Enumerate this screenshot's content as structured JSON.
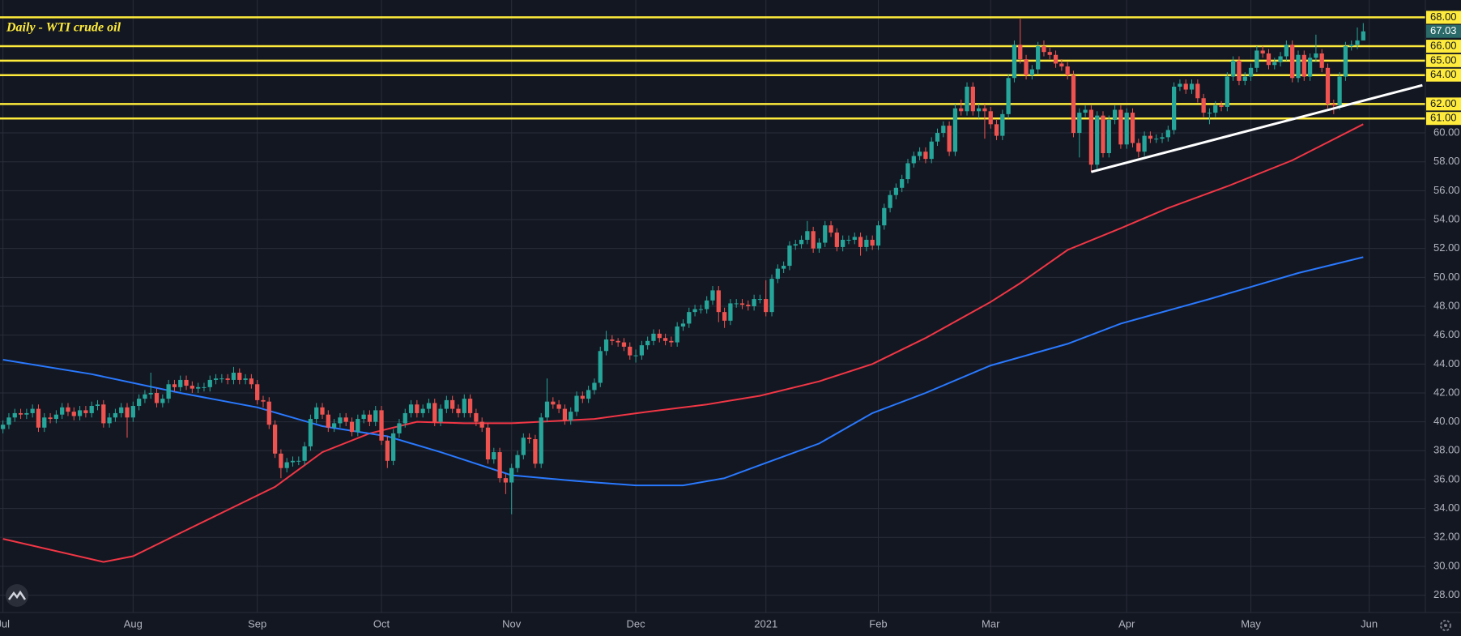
{
  "chart_data": {
    "type": "candlestick",
    "title": "Daily - WTI crude oil",
    "categories": [
      "Jul",
      null,
      null,
      null,
      null,
      null,
      null,
      null,
      null,
      null,
      null,
      null,
      null,
      null,
      null,
      null,
      null,
      null,
      null,
      null,
      null,
      null,
      "Aug",
      null,
      null,
      null,
      null,
      null,
      null,
      null,
      null,
      null,
      null,
      null,
      null,
      null,
      null,
      null,
      null,
      null,
      null,
      null,
      null,
      "Sep",
      null,
      null,
      null,
      null,
      null,
      null,
      null,
      null,
      null,
      null,
      null,
      null,
      null,
      null,
      null,
      null,
      null,
      null,
      null,
      null,
      "Oct",
      null,
      null,
      null,
      null,
      null,
      null,
      null,
      null,
      null,
      null,
      null,
      null,
      null,
      null,
      null,
      null,
      null,
      null,
      null,
      null,
      null,
      "Nov",
      null,
      null,
      null,
      null,
      null,
      null,
      null,
      null,
      null,
      null,
      null,
      null,
      null,
      null,
      null,
      null,
      null,
      null,
      null,
      null,
      "Dec",
      null,
      null,
      null,
      null,
      null,
      null,
      null,
      null,
      null,
      null,
      null,
      null,
      null,
      null,
      null,
      null,
      null,
      null,
      null,
      null,
      null,
      "2021",
      null,
      null,
      null,
      null,
      null,
      null,
      null,
      null,
      null,
      null,
      null,
      null,
      null,
      null,
      null,
      null,
      null,
      null,
      "Feb",
      null,
      null,
      null,
      null,
      null,
      null,
      null,
      null,
      null,
      null,
      null,
      null,
      null,
      null,
      null,
      null,
      null,
      null,
      "Mar",
      null,
      null,
      null,
      null,
      null,
      null,
      null,
      null,
      null,
      null,
      null,
      null,
      null,
      null,
      null,
      null,
      null,
      null,
      null,
      null,
      null,
      null,
      "Apr",
      null,
      null,
      null,
      null,
      null,
      null,
      null,
      null,
      null,
      null,
      null,
      null,
      null,
      null,
      null,
      null,
      null,
      null,
      null,
      null,
      "May",
      null,
      null,
      null,
      null,
      null,
      null,
      null,
      null,
      null,
      null,
      null,
      null,
      null,
      null,
      null,
      null,
      null,
      null,
      null,
      "Jun",
      null,
      null,
      null,
      null,
      null,
      null,
      null,
      null,
      null
    ],
    "open": [
      39.5,
      39.8,
      40.3,
      40.6,
      40.5,
      40.6,
      40.9,
      39.6,
      40.3,
      40.2,
      40.5,
      41.0,
      40.7,
      40.4,
      40.8,
      40.6,
      41.1,
      41.2,
      39.9,
      40.3,
      40.6,
      41.0,
      40.3,
      41.1,
      41.6,
      41.9,
      42.0,
      41.3,
      41.6,
      42.6,
      42.4,
      42.9,
      42.5,
      42.3,
      42.4,
      42.4,
      42.9,
      43.0,
      43.0,
      42.9,
      43.4,
      42.9,
      43.0,
      42.6,
      41.5,
      41.4,
      39.8,
      37.8,
      36.8,
      37.2,
      37.3,
      37.3,
      38.3,
      40.2,
      41.0,
      40.5,
      39.6,
      39.9,
      40.3,
      40.0,
      39.3,
      40.2,
      40.5,
      40.0,
      40.8,
      38.7,
      37.3,
      39.2,
      39.9,
      40.6,
      41.2,
      40.6,
      40.9,
      41.3,
      40.0,
      40.9,
      41.5,
      40.9,
      40.6,
      41.6,
      40.6,
      40.0,
      39.6,
      37.4,
      37.9,
      36.1,
      35.8,
      36.8,
      37.7,
      38.9,
      38.8,
      37.1,
      40.3,
      41.4,
      41.2,
      40.9,
      40.1,
      40.7,
      41.8,
      41.6,
      42.2,
      42.7,
      44.9,
      45.7,
      45.6,
      45.5,
      45.2,
      44.6,
      44.6,
      45.3,
      45.6,
      46.1,
      45.8,
      45.6,
      45.5,
      46.6,
      46.8,
      47.6,
      47.8,
      47.8,
      48.4,
      49.1,
      47.6,
      47.0,
      48.2,
      48.2,
      48.1,
      48.0,
      48.5,
      48.5,
      47.6,
      49.9,
      50.6,
      50.8,
      52.2,
      52.3,
      52.6,
      53.2,
      52.0,
      52.4,
      53.6,
      53.1,
      52.1,
      52.6,
      52.6,
      52.8,
      52.1,
      52.6,
      52.2,
      53.6,
      54.8,
      55.7,
      56.2,
      56.8,
      57.9,
      58.4,
      58.7,
      58.2,
      59.4,
      60.0,
      60.5,
      58.7,
      61.7,
      61.5,
      63.2,
      61.5,
      61.7,
      61.5,
      60.6,
      59.8,
      61.3,
      63.8,
      66.1,
      65.1,
      64.0,
      64.4,
      66.0,
      65.6,
      65.4,
      64.8,
      64.6,
      64.0,
      60.0,
      61.4,
      61.6,
      57.8,
      61.2,
      58.6,
      60.9,
      61.6,
      59.2,
      61.4,
      59.3,
      58.7,
      59.8,
      59.6,
      59.6,
      59.7,
      60.2,
      63.2,
      63.4,
      63.0,
      63.4,
      62.4,
      61.4,
      61.4,
      61.9,
      61.8,
      63.9,
      65.0,
      63.6,
      63.9,
      64.5,
      65.7,
      65.5,
      64.7,
      64.9,
      65.3,
      66.1,
      63.8,
      65.4,
      63.9,
      65.2,
      65.5,
      64.5,
      62.0,
      61.9,
      63.9,
      66.0,
      66.1,
      66.4,
      null,
      null,
      null,
      null,
      null,
      null,
      null,
      null,
      null,
      null
    ],
    "high": [
      40.1,
      40.6,
      40.9,
      40.9,
      40.9,
      41.2,
      41.2,
      40.6,
      40.6,
      40.8,
      41.3,
      41.3,
      41.0,
      41.1,
      41.1,
      41.4,
      41.5,
      41.5,
      40.6,
      40.9,
      41.3,
      41.3,
      41.4,
      41.9,
      42.2,
      43.4,
      42.3,
      41.9,
      42.9,
      42.9,
      43.2,
      43.2,
      42.8,
      42.7,
      42.7,
      43.2,
      43.3,
      43.3,
      43.3,
      43.8,
      43.7,
      43.3,
      43.3,
      42.9,
      41.8,
      41.7,
      40.1,
      38.1,
      37.5,
      37.6,
      37.6,
      38.6,
      40.5,
      41.3,
      41.3,
      40.8,
      40.2,
      40.6,
      40.6,
      40.3,
      40.5,
      40.8,
      40.8,
      41.1,
      41.1,
      39.0,
      39.5,
      40.2,
      40.9,
      41.5,
      41.5,
      41.2,
      41.6,
      41.6,
      41.2,
      41.8,
      41.8,
      41.2,
      41.9,
      41.9,
      40.9,
      40.3,
      39.9,
      38.2,
      38.2,
      36.4,
      37.1,
      38.0,
      39.2,
      39.2,
      39.1,
      40.6,
      43.0,
      41.7,
      41.5,
      41.2,
      41.0,
      42.1,
      42.1,
      42.5,
      43.0,
      45.2,
      46.3,
      46.0,
      45.8,
      45.8,
      45.5,
      45.0,
      45.6,
      45.9,
      46.4,
      46.4,
      46.1,
      45.9,
      46.9,
      47.1,
      47.9,
      48.1,
      48.1,
      48.7,
      49.4,
      49.4,
      47.9,
      48.5,
      48.5,
      48.5,
      48.4,
      48.8,
      48.8,
      49.8,
      50.2,
      50.9,
      51.1,
      52.5,
      52.6,
      52.9,
      53.9,
      53.5,
      52.7,
      53.9,
      53.9,
      53.4,
      52.9,
      52.9,
      53.1,
      53.1,
      52.9,
      52.9,
      53.9,
      55.1,
      56.0,
      56.5,
      57.1,
      58.2,
      58.7,
      59.0,
      59.0,
      59.7,
      60.3,
      60.8,
      60.8,
      62.0,
      62.3,
      63.5,
      63.5,
      62.0,
      62.0,
      61.8,
      60.9,
      61.6,
      64.1,
      66.4,
      67.9,
      65.4,
      64.7,
      66.3,
      66.4,
      65.9,
      65.7,
      65.1,
      64.9,
      64.3,
      61.7,
      61.9,
      61.9,
      61.5,
      61.5,
      61.2,
      61.9,
      61.9,
      61.7,
      61.7,
      59.6,
      60.1,
      60.1,
      59.9,
      60.0,
      60.5,
      63.5,
      63.7,
      63.7,
      63.7,
      63.7,
      62.7,
      61.7,
      62.2,
      62.2,
      64.2,
      65.3,
      65.3,
      64.2,
      64.8,
      66.0,
      66.0,
      65.8,
      65.2,
      65.6,
      66.4,
      66.4,
      65.7,
      65.7,
      65.5,
      66.8,
      65.8,
      64.8,
      62.3,
      64.2,
      66.3,
      66.4,
      67.3,
      67.6,
      null,
      null,
      null,
      null,
      null,
      null,
      null,
      null,
      null,
      null
    ],
    "low": [
      39.2,
      39.5,
      40.0,
      40.2,
      40.2,
      40.3,
      39.3,
      39.3,
      39.9,
      39.9,
      40.2,
      40.4,
      40.1,
      40.1,
      40.3,
      40.3,
      40.8,
      39.6,
      39.6,
      40.0,
      40.3,
      38.9,
      40.0,
      40.8,
      41.3,
      41.6,
      41.0,
      41.0,
      41.3,
      42.1,
      42.1,
      42.2,
      42.0,
      42.0,
      42.1,
      42.1,
      42.6,
      42.7,
      42.6,
      42.6,
      42.6,
      42.6,
      42.3,
      41.2,
      41.0,
      39.5,
      37.5,
      36.1,
      36.5,
      36.9,
      37.0,
      37.0,
      38.0,
      39.9,
      40.2,
      39.3,
      39.3,
      39.6,
      39.7,
      39.0,
      39.0,
      39.9,
      39.7,
      39.7,
      38.4,
      36.8,
      37.0,
      38.9,
      39.6,
      40.3,
      40.3,
      40.3,
      40.6,
      39.7,
      39.7,
      40.6,
      40.6,
      40.3,
      40.3,
      40.3,
      39.7,
      39.3,
      37.1,
      37.1,
      35.8,
      35.0,
      33.6,
      36.5,
      37.4,
      38.5,
      36.8,
      36.8,
      40.0,
      40.9,
      40.6,
      39.8,
      39.8,
      40.4,
      41.3,
      41.3,
      41.9,
      42.4,
      44.6,
      45.3,
      45.2,
      44.9,
      44.3,
      44.1,
      44.3,
      45.0,
      45.3,
      45.5,
      45.3,
      45.2,
      45.2,
      46.3,
      46.5,
      47.3,
      47.5,
      47.5,
      48.1,
      46.9,
      46.5,
      46.7,
      47.9,
      47.8,
      47.7,
      47.7,
      48.2,
      47.3,
      47.3,
      49.6,
      50.3,
      50.5,
      51.9,
      52.0,
      52.3,
      51.7,
      51.7,
      52.1,
      52.8,
      51.8,
      51.8,
      52.3,
      52.3,
      51.5,
      51.8,
      51.9,
      51.9,
      53.3,
      54.5,
      55.4,
      55.9,
      56.5,
      57.6,
      58.1,
      57.9,
      57.9,
      59.1,
      59.7,
      58.4,
      58.4,
      61.2,
      61.2,
      61.2,
      61.0,
      59.6,
      60.3,
      59.5,
      59.5,
      61.0,
      63.5,
      64.8,
      63.7,
      63.7,
      64.1,
      65.3,
      65.1,
      64.5,
      64.3,
      63.7,
      59.7,
      58.3,
      61.1,
      57.3,
      57.5,
      58.3,
      58.3,
      60.6,
      58.9,
      58.9,
      59.0,
      58.3,
      58.4,
      59.3,
      59.3,
      59.3,
      59.4,
      59.9,
      62.9,
      62.7,
      62.7,
      62.1,
      61.1,
      60.6,
      61.1,
      61.5,
      61.5,
      63.6,
      63.3,
      63.3,
      63.6,
      64.2,
      65.2,
      64.4,
      64.4,
      64.6,
      65.0,
      63.5,
      63.5,
      63.6,
      63.6,
      64.9,
      64.2,
      61.7,
      61.3,
      61.6,
      63.6,
      65.7,
      65.8,
      66.6,
      null,
      null,
      null,
      null,
      null,
      null,
      null,
      null,
      null,
      null
    ],
    "close": [
      39.8,
      40.3,
      40.6,
      40.5,
      40.6,
      40.9,
      39.6,
      40.3,
      40.2,
      40.5,
      41.0,
      40.7,
      40.4,
      40.8,
      40.6,
      41.1,
      41.2,
      39.9,
      40.3,
      40.6,
      41.0,
      40.3,
      41.1,
      41.6,
      41.9,
      42.0,
      41.3,
      41.6,
      42.6,
      42.4,
      42.9,
      42.5,
      42.3,
      42.4,
      42.4,
      42.9,
      43.0,
      43.0,
      42.9,
      43.4,
      42.9,
      43.0,
      42.6,
      41.5,
      41.4,
      39.8,
      37.8,
      36.8,
      37.2,
      37.3,
      37.3,
      38.3,
      40.2,
      41.0,
      40.5,
      39.6,
      39.9,
      40.3,
      40.0,
      39.3,
      40.2,
      40.5,
      40.0,
      40.8,
      38.7,
      37.3,
      39.2,
      39.9,
      40.6,
      41.2,
      40.6,
      40.9,
      41.3,
      40.0,
      40.9,
      41.5,
      40.9,
      40.6,
      41.6,
      40.6,
      40.0,
      39.6,
      37.4,
      37.9,
      36.1,
      35.8,
      36.8,
      37.7,
      38.9,
      38.8,
      37.1,
      40.3,
      41.4,
      41.2,
      40.9,
      40.1,
      40.7,
      41.8,
      41.6,
      42.2,
      42.7,
      44.9,
      45.7,
      45.6,
      45.5,
      45.2,
      44.6,
      44.6,
      45.3,
      45.6,
      46.1,
      45.8,
      45.6,
      45.5,
      46.6,
      46.8,
      47.6,
      47.8,
      47.8,
      48.4,
      49.1,
      47.6,
      47.0,
      48.2,
      48.2,
      48.1,
      48.0,
      48.5,
      48.5,
      47.6,
      49.9,
      50.6,
      50.8,
      52.2,
      52.3,
      52.6,
      53.2,
      52.0,
      52.4,
      53.6,
      53.1,
      52.1,
      52.6,
      52.6,
      52.8,
      52.1,
      52.6,
      52.2,
      53.6,
      54.8,
      55.7,
      56.2,
      56.8,
      57.9,
      58.4,
      58.7,
      58.2,
      59.4,
      60.0,
      60.5,
      58.7,
      61.7,
      61.5,
      63.2,
      61.5,
      61.7,
      61.5,
      60.6,
      59.8,
      61.3,
      63.8,
      66.1,
      65.1,
      64.0,
      64.4,
      66.0,
      65.6,
      65.4,
      64.8,
      64.6,
      64.0,
      60.0,
      61.4,
      61.6,
      57.8,
      61.2,
      58.6,
      60.9,
      61.6,
      59.2,
      61.4,
      59.3,
      58.7,
      59.8,
      59.6,
      59.6,
      59.7,
      60.2,
      63.2,
      63.4,
      63.0,
      63.4,
      62.4,
      61.4,
      61.4,
      61.9,
      61.8,
      63.9,
      65.0,
      63.6,
      63.9,
      64.5,
      65.7,
      65.5,
      64.7,
      64.9,
      65.3,
      66.1,
      63.8,
      65.4,
      63.9,
      65.2,
      65.5,
      64.5,
      62.0,
      61.9,
      63.9,
      66.0,
      66.1,
      66.4,
      67.03,
      null,
      null,
      null,
      null,
      null,
      null,
      null,
      null,
      null,
      null
    ],
    "up_color": "#26a69a",
    "down_color": "#ef5350",
    "moving_averages": [
      {
        "color": "#f23645",
        "x": [
          0,
          17,
          22,
          30,
          38,
          46,
          54,
          62,
          70,
          78,
          86,
          100,
          109,
          119,
          128,
          138,
          147,
          156,
          167,
          172,
          180,
          189,
          197,
          207,
          218,
          230
        ],
        "values": [
          31.9,
          30.3,
          30.7,
          32.3,
          33.9,
          35.5,
          37.9,
          39.2,
          40.0,
          39.9,
          39.9,
          40.2,
          40.7,
          41.2,
          41.8,
          42.8,
          44.0,
          45.8,
          48.3,
          49.6,
          51.9,
          53.4,
          54.8,
          56.3,
          58.1,
          60.6
        ]
      },
      {
        "color": "#2979ff",
        "x": [
          0,
          15,
          30,
          43,
          54,
          65,
          74,
          86,
          97,
          107,
          115,
          122,
          128,
          138,
          147,
          156,
          167,
          180,
          189,
          204,
          219,
          230
        ],
        "values": [
          44.3,
          43.3,
          42.0,
          41.0,
          39.7,
          39.0,
          37.9,
          36.3,
          35.9,
          35.6,
          35.6,
          36.1,
          37.0,
          38.5,
          40.6,
          42.0,
          43.9,
          45.4,
          46.8,
          48.5,
          50.3,
          51.4
        ]
      }
    ],
    "levels": {
      "color": "#ffeb3b",
      "values": [
        {
          "value": 68,
          "label": "68.00"
        },
        {
          "value": 66,
          "label": "66.00"
        },
        {
          "value": 65,
          "label": "65.00"
        },
        {
          "value": 64,
          "label": "64.00"
        },
        {
          "value": 62,
          "label": "62.00"
        },
        {
          "value": 61,
          "label": "61.00"
        }
      ]
    },
    "trendline": {
      "color": "#ffffff",
      "x": [
        184,
        240
      ],
      "y": [
        57.3,
        63.3
      ]
    },
    "last_price_color": "#2a6b6a",
    "ylim": [
      26.8,
      69.2
    ],
    "yticks": [
      {
        "value": 28,
        "label": "28.00"
      },
      {
        "value": 30,
        "label": "30.00"
      },
      {
        "value": 32,
        "label": "32.00"
      },
      {
        "value": 34,
        "label": "34.00"
      },
      {
        "value": 36,
        "label": "36.00"
      },
      {
        "value": 38,
        "label": "38.00"
      },
      {
        "value": 40,
        "label": "40.00"
      },
      {
        "value": 42,
        "label": "42.00"
      },
      {
        "value": 44,
        "label": "44.00"
      },
      {
        "value": 46,
        "label": "46.00"
      },
      {
        "value": 48,
        "label": "48.00"
      },
      {
        "value": 50,
        "label": "50.00"
      },
      {
        "value": 52,
        "label": "52.00"
      },
      {
        "value": 54,
        "label": "54.00"
      },
      {
        "value": 56,
        "label": "56.00"
      },
      {
        "value": 58,
        "label": "58.00"
      },
      {
        "value": 60,
        "label": "60.00"
      }
    ],
    "grid": true
  }
}
